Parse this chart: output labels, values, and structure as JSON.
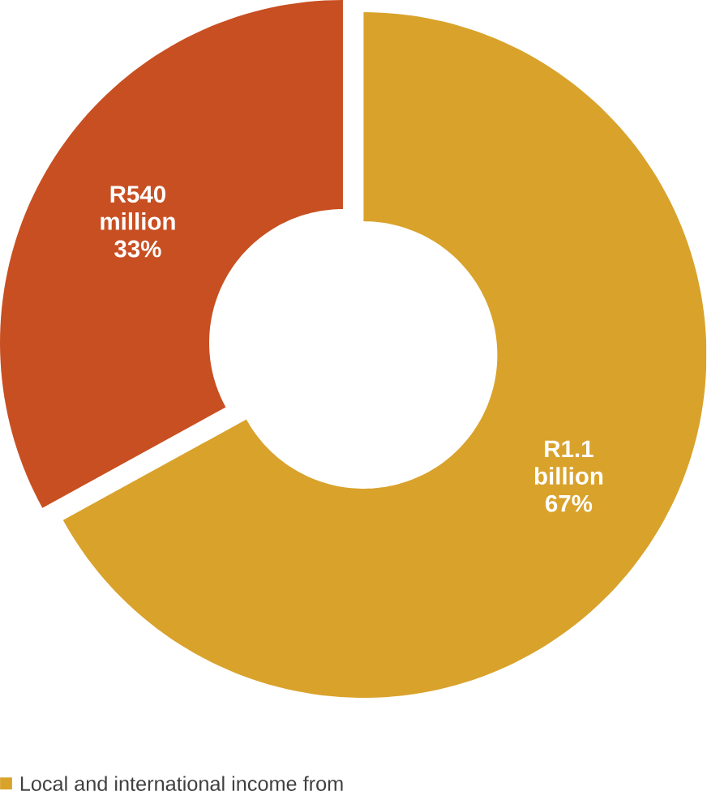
{
  "chart_data": {
    "type": "donut",
    "categories": [
      "Local and international income from",
      null
    ],
    "values": [
      67,
      33
    ],
    "colors": [
      "#d9a22b",
      "#c84f22"
    ],
    "value_labels": [
      "R1.1 billion 67%",
      "R540 million 33%"
    ],
    "legend": "bottom left"
  }
}
